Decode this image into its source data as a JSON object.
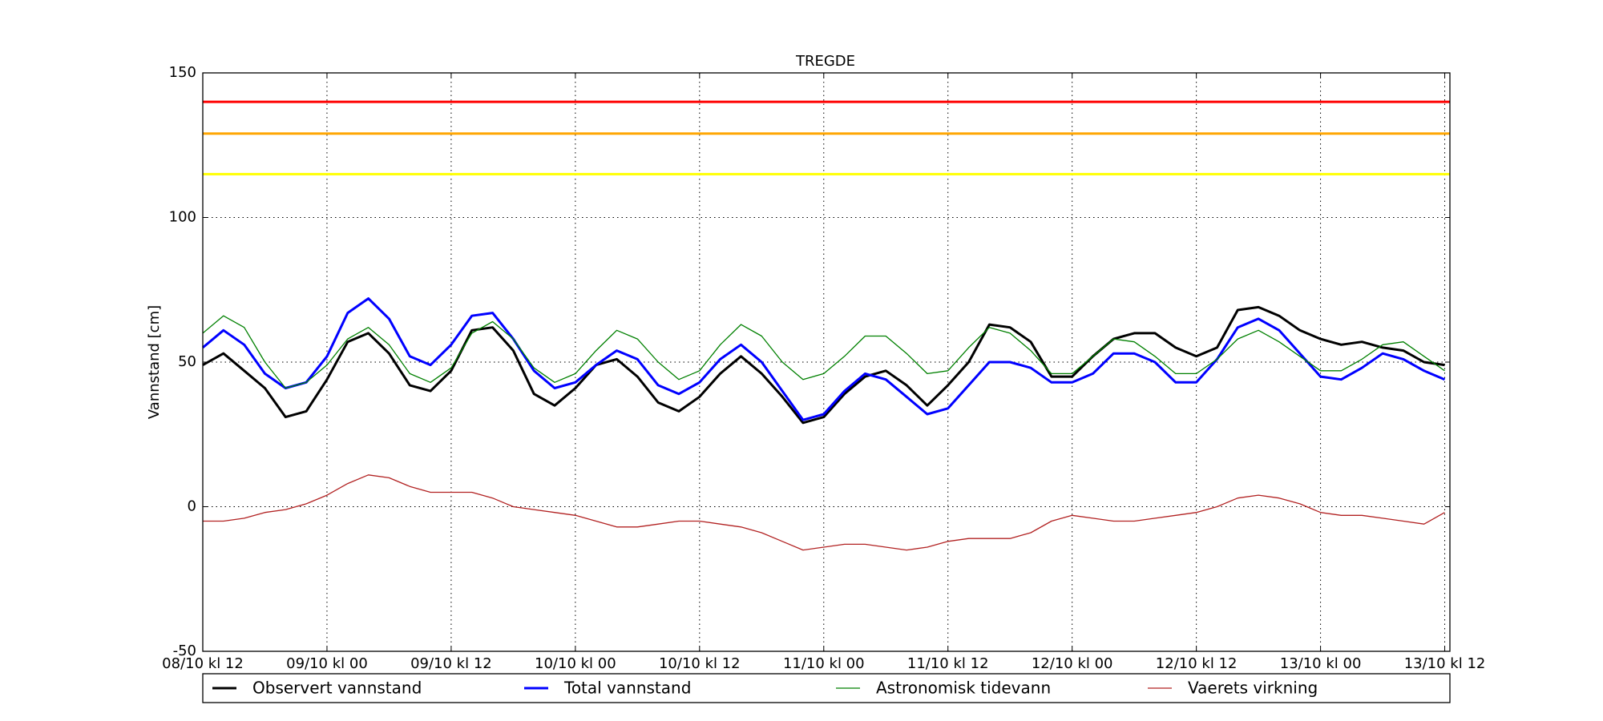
{
  "chart_data": {
    "type": "line",
    "title": "TREGDE",
    "y_label": "Vannstand [cm]",
    "x": [
      0,
      2,
      4,
      6,
      8,
      10,
      12,
      14,
      16,
      18,
      20,
      22,
      24,
      26,
      28,
      30,
      32,
      34,
      36,
      38,
      40,
      42,
      44,
      46,
      48,
      50,
      52,
      54,
      56,
      58,
      60,
      62,
      64,
      66,
      68,
      70,
      72,
      74,
      76,
      78,
      80,
      82,
      84,
      86,
      88,
      90,
      92,
      94,
      96,
      98,
      100,
      102,
      104,
      106,
      108,
      110,
      112,
      114,
      116,
      118,
      120
    ],
    "xlim": [
      0,
      120.5
    ],
    "xticks": [
      {
        "value": 0,
        "label": "08/10 kl 12"
      },
      {
        "value": 12,
        "label": "09/10 kl 00"
      },
      {
        "value": 24,
        "label": "09/10 kl 12"
      },
      {
        "value": 36,
        "label": "10/10 kl 00"
      },
      {
        "value": 48,
        "label": "10/10 kl 12"
      },
      {
        "value": 60,
        "label": "11/10 kl 00"
      },
      {
        "value": 72,
        "label": "11/10 kl 12"
      },
      {
        "value": 84,
        "label": "12/10 kl 00"
      },
      {
        "value": 96,
        "label": "12/10 kl 12"
      },
      {
        "value": 108,
        "label": "13/10 kl 00"
      },
      {
        "value": 120,
        "label": "13/10 kl 12"
      }
    ],
    "ylim": [
      -50,
      150
    ],
    "yticks": [
      -50,
      0,
      50,
      100,
      150
    ],
    "grid": true,
    "reference_lines": [
      {
        "value": 140,
        "color": "#ff0000"
      },
      {
        "value": 129,
        "color": "#ffa500"
      },
      {
        "value": 115,
        "color": "#ffff00"
      }
    ],
    "series": [
      {
        "name": "Observert vannstand",
        "color": "#000000",
        "linewidth": 3,
        "values": [
          49,
          53,
          47,
          41,
          31,
          33,
          44,
          57,
          60,
          53,
          42,
          40,
          47,
          61,
          62,
          54,
          39,
          35,
          41,
          49,
          51,
          45,
          36,
          33,
          38,
          46,
          52,
          46,
          38,
          29,
          31,
          39,
          45,
          47,
          42,
          35,
          42,
          50,
          63,
          62,
          57,
          45,
          45,
          52,
          58,
          60,
          60,
          55,
          52,
          55,
          68,
          69,
          66,
          61,
          58,
          56,
          57,
          55,
          54,
          50,
          49
        ]
      },
      {
        "name": "Total vannstand",
        "color": "#0000ff",
        "linewidth": 3,
        "values": [
          55,
          61,
          56,
          46,
          41,
          43,
          52,
          67,
          72,
          65,
          52,
          49,
          56,
          66,
          67,
          58,
          47,
          41,
          43,
          49,
          54,
          51,
          42,
          39,
          43,
          51,
          56,
          50,
          40,
          30,
          32,
          40,
          46,
          44,
          38,
          32,
          34,
          42,
          50,
          50,
          48,
          43,
          43,
          46,
          53,
          53,
          50,
          43,
          43,
          51,
          62,
          65,
          61,
          53,
          45,
          44,
          48,
          53,
          51,
          47,
          44
        ]
      },
      {
        "name": "Astronomisk tidevann",
        "color": "#008000",
        "linewidth": 1.3,
        "values": [
          60,
          66,
          62,
          50,
          41,
          43,
          49,
          58,
          62,
          56,
          46,
          43,
          48,
          60,
          64,
          58,
          48,
          43,
          46,
          54,
          61,
          58,
          50,
          44,
          47,
          56,
          63,
          59,
          50,
          44,
          46,
          52,
          59,
          59,
          53,
          46,
          47,
          55,
          62,
          60,
          54,
          46,
          46,
          52,
          58,
          57,
          52,
          46,
          46,
          51,
          58,
          61,
          57,
          52,
          47,
          47,
          51,
          56,
          57,
          52,
          47
        ]
      },
      {
        "name": "Vaerets virkning",
        "color": "#b22222",
        "linewidth": 1.3,
        "values": [
          -5,
          -5,
          -4,
          -2,
          -1,
          1,
          4,
          8,
          11,
          10,
          7,
          5,
          5,
          5,
          3,
          0,
          -1,
          -2,
          -3,
          -5,
          -7,
          -7,
          -6,
          -5,
          -5,
          -6,
          -7,
          -9,
          -12,
          -15,
          -14,
          -13,
          -13,
          -14,
          -15,
          -14,
          -12,
          -11,
          -11,
          -11,
          -9,
          -5,
          -3,
          -4,
          -5,
          -5,
          -4,
          -3,
          -2,
          0,
          3,
          4,
          3,
          1,
          -2,
          -3,
          -3,
          -4,
          -5,
          -6,
          -2
        ]
      }
    ]
  }
}
